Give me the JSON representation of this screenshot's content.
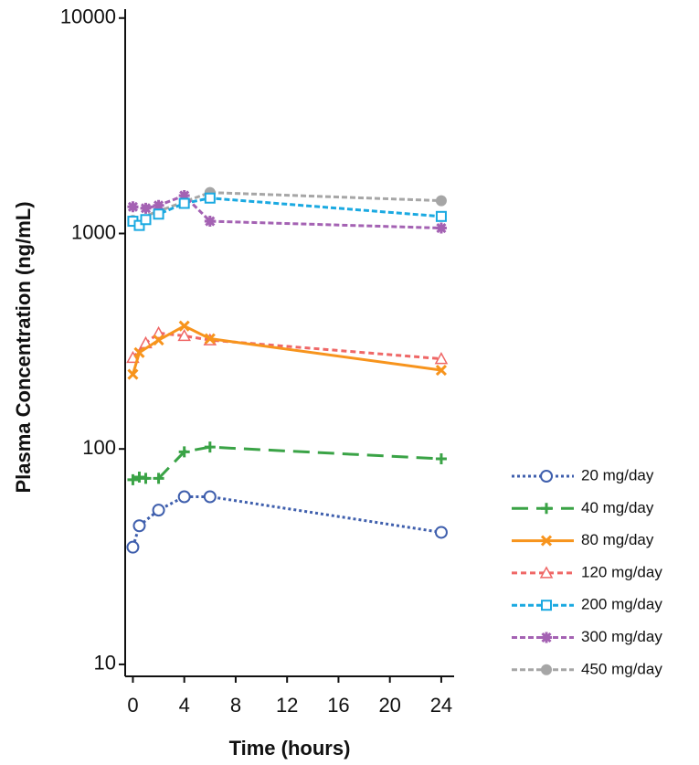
{
  "chart_data": {
    "type": "line",
    "xlabel": "Time (hours)",
    "ylabel": "Plasma Concentration (ng/mL)",
    "xlim": [
      -0.6,
      25
    ],
    "ylim": [
      8.8,
      11000
    ],
    "yscale": "log",
    "xticks": [
      0,
      4,
      8,
      12,
      16,
      20,
      24
    ],
    "yticks": [
      10,
      100,
      1000,
      10000
    ],
    "legend": "lower right",
    "series": [
      {
        "name": "20 mg/day",
        "color": "#3f5fad",
        "marker": "circle",
        "dash": "3 3",
        "x": [
          0,
          0.5,
          2,
          4,
          6,
          24
        ],
        "values": [
          35,
          44,
          52,
          60,
          60,
          41
        ]
      },
      {
        "name": "40 mg/day",
        "color": "#3aa346",
        "marker": "plus",
        "dash": "18 9",
        "x": [
          0,
          0.5,
          1,
          2,
          4,
          6,
          24
        ],
        "values": [
          72,
          74,
          73,
          73,
          97,
          102,
          90
        ]
      },
      {
        "name": "80 mg/day",
        "color": "#f7941d",
        "marker": "cross",
        "dash": "none",
        "x": [
          0,
          0.5,
          2,
          4,
          6,
          24
        ],
        "values": [
          222,
          280,
          320,
          372,
          325,
          232
        ]
      },
      {
        "name": "120 mg/day",
        "color": "#ef6766",
        "marker": "triangle",
        "dash": "6 4",
        "x": [
          0,
          1,
          2,
          4,
          6,
          24
        ],
        "values": [
          265,
          310,
          345,
          335,
          320,
          262
        ]
      },
      {
        "name": "200 mg/day",
        "color": "#1aa9e1",
        "marker": "square",
        "dash": "6 3",
        "x": [
          0,
          0.5,
          1,
          2,
          4,
          6,
          24
        ],
        "values": [
          1140,
          1090,
          1160,
          1230,
          1380,
          1460,
          1200
        ]
      },
      {
        "name": "300 mg/day",
        "color": "#a462b3",
        "marker": "asterisk",
        "dash": "6 3",
        "x": [
          0,
          1,
          2,
          4,
          6,
          24
        ],
        "values": [
          1330,
          1310,
          1350,
          1500,
          1140,
          1060
        ]
      },
      {
        "name": "450 mg/day",
        "color": "#a6a6a6",
        "marker": "dot",
        "dash": "6 3",
        "x": [
          0,
          6,
          24
        ],
        "values": [
          1150,
          1550,
          1420
        ]
      }
    ]
  }
}
